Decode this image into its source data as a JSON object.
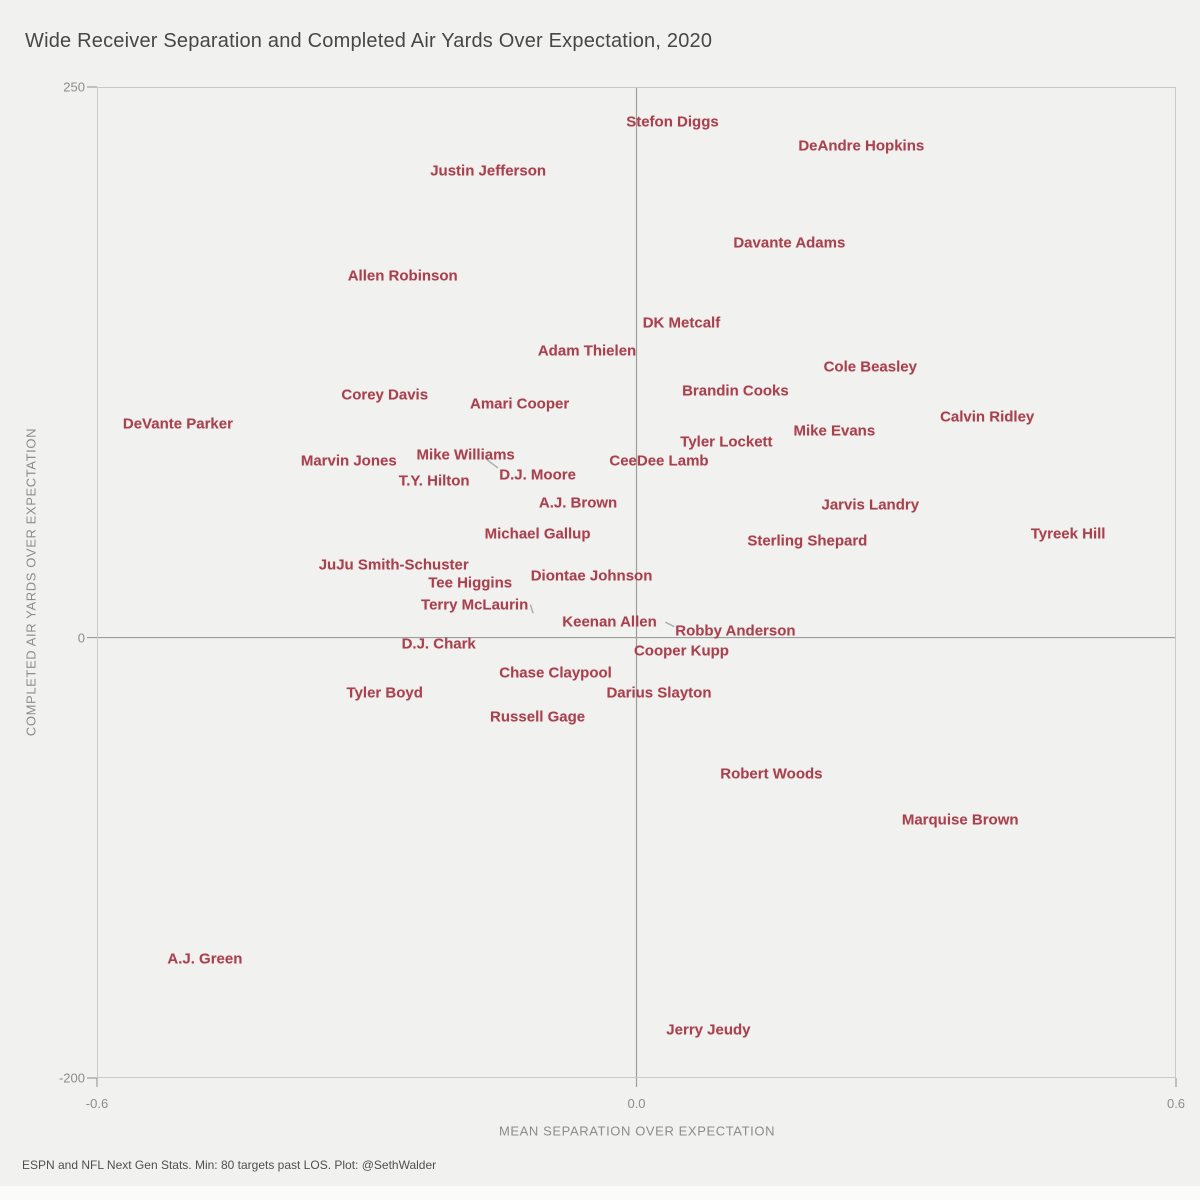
{
  "title": "Wide Receiver Separation and Completed Air Yards Over Expectation, 2020",
  "footer": "ESPN and NFL Next Gen Stats. Min: 80 targets past LOS. Plot: @SethWalder",
  "colors": {
    "background": "#f1f1ef",
    "bottom_strip": "#fbfbfa",
    "player_label": "#a8414e",
    "title_text": "#474747",
    "axis_text": "#8c8c8c",
    "footer_text": "#4f4f4f",
    "plot_border": "#c9c9c9",
    "zero_line": "#9e9e9e",
    "leader_line": "#b0b0b0"
  },
  "chart_data": {
    "type": "scatter",
    "title": "Wide Receiver Separation and Completed Air Yards Over Expectation, 2020",
    "xlabel": "MEAN SEPARATION OVER EXPECTATION",
    "ylabel": "COMPLETED AIR YARDS OVER EXPECTATION",
    "xlim": [
      -0.6,
      0.6
    ],
    "ylim": [
      -200,
      250
    ],
    "grid": "off",
    "legend": "none",
    "points_style": "text-labels",
    "zero_lines": {
      "x": 0,
      "y": 0
    },
    "x_ticks": [
      {
        "value": -0.6,
        "label": "-0.6"
      },
      {
        "value": 0.0,
        "label": "0.0"
      },
      {
        "value": 0.6,
        "label": "0.6"
      }
    ],
    "y_ticks": [
      {
        "value": 250,
        "label": "250"
      },
      {
        "value": 0,
        "label": "0"
      },
      {
        "value": -200,
        "label": "-200"
      }
    ],
    "players": [
      {
        "name": "Stefon Diggs",
        "x": 0.04,
        "y": 234
      },
      {
        "name": "DeAndre Hopkins",
        "x": 0.25,
        "y": 223
      },
      {
        "name": "Justin Jefferson",
        "x": -0.165,
        "y": 212
      },
      {
        "name": "Davante Adams",
        "x": 0.17,
        "y": 179
      },
      {
        "name": "Allen Robinson",
        "x": -0.26,
        "y": 164
      },
      {
        "name": "DK Metcalf",
        "x": 0.05,
        "y": 143
      },
      {
        "name": "Adam Thielen",
        "x": -0.055,
        "y": 130
      },
      {
        "name": "Cole Beasley",
        "x": 0.26,
        "y": 123
      },
      {
        "name": "Brandin Cooks",
        "x": 0.11,
        "y": 112
      },
      {
        "name": "Corey Davis",
        "x": -0.28,
        "y": 110
      },
      {
        "name": "Amari Cooper",
        "x": -0.13,
        "y": 106
      },
      {
        "name": "Calvin Ridley",
        "x": 0.39,
        "y": 100
      },
      {
        "name": "DeVante Parker",
        "x": -0.51,
        "y": 97
      },
      {
        "name": "Mike Evans",
        "x": 0.22,
        "y": 94
      },
      {
        "name": "Tyler Lockett",
        "x": 0.1,
        "y": 89
      },
      {
        "name": "Mike Williams",
        "x": -0.19,
        "y": 83
      },
      {
        "name": "Marvin Jones",
        "x": -0.32,
        "y": 80
      },
      {
        "name": "CeeDee Lamb",
        "x": 0.025,
        "y": 80
      },
      {
        "name": "D.J. Moore",
        "x": -0.11,
        "y": 74
      },
      {
        "name": "T.Y. Hilton",
        "x": -0.225,
        "y": 71
      },
      {
        "name": "A.J. Brown",
        "x": -0.065,
        "y": 61
      },
      {
        "name": "Jarvis Landry",
        "x": 0.26,
        "y": 60
      },
      {
        "name": "Michael Gallup",
        "x": -0.11,
        "y": 47
      },
      {
        "name": "Tyreek Hill",
        "x": 0.48,
        "y": 47
      },
      {
        "name": "Sterling Shepard",
        "x": 0.19,
        "y": 44
      },
      {
        "name": "JuJu Smith-Schuster",
        "x": -0.27,
        "y": 33
      },
      {
        "name": "Diontae Johnson",
        "x": -0.05,
        "y": 28
      },
      {
        "name": "Tee Higgins",
        "x": -0.185,
        "y": 25
      },
      {
        "name": "Terry McLaurin",
        "x": -0.18,
        "y": 15
      },
      {
        "name": "Keenan Allen",
        "x": -0.03,
        "y": 7
      },
      {
        "name": "Robby Anderson",
        "x": 0.11,
        "y": 3
      },
      {
        "name": "D.J. Chark",
        "x": -0.22,
        "y": -3
      },
      {
        "name": "Cooper Kupp",
        "x": 0.05,
        "y": -6
      },
      {
        "name": "Chase Claypool",
        "x": -0.09,
        "y": -16
      },
      {
        "name": "Tyler Boyd",
        "x": -0.28,
        "y": -25
      },
      {
        "name": "Darius Slayton",
        "x": 0.025,
        "y": -25
      },
      {
        "name": "Russell Gage",
        "x": -0.11,
        "y": -36
      },
      {
        "name": "Robert Woods",
        "x": 0.15,
        "y": -62
      },
      {
        "name": "Marquise Brown",
        "x": 0.36,
        "y": -83
      },
      {
        "name": "A.J. Green",
        "x": -0.48,
        "y": -146
      },
      {
        "name": "Jerry Jeudy",
        "x": 0.08,
        "y": -178
      }
    ],
    "leader_lines": [
      {
        "x1": -0.167,
        "y1": 81,
        "x2": -0.154,
        "y2": 77
      },
      {
        "x1": -0.118,
        "y1": 15,
        "x2": -0.115,
        "y2": 11
      },
      {
        "x1": 0.032,
        "y1": 7,
        "x2": 0.042,
        "y2": 5
      }
    ]
  }
}
